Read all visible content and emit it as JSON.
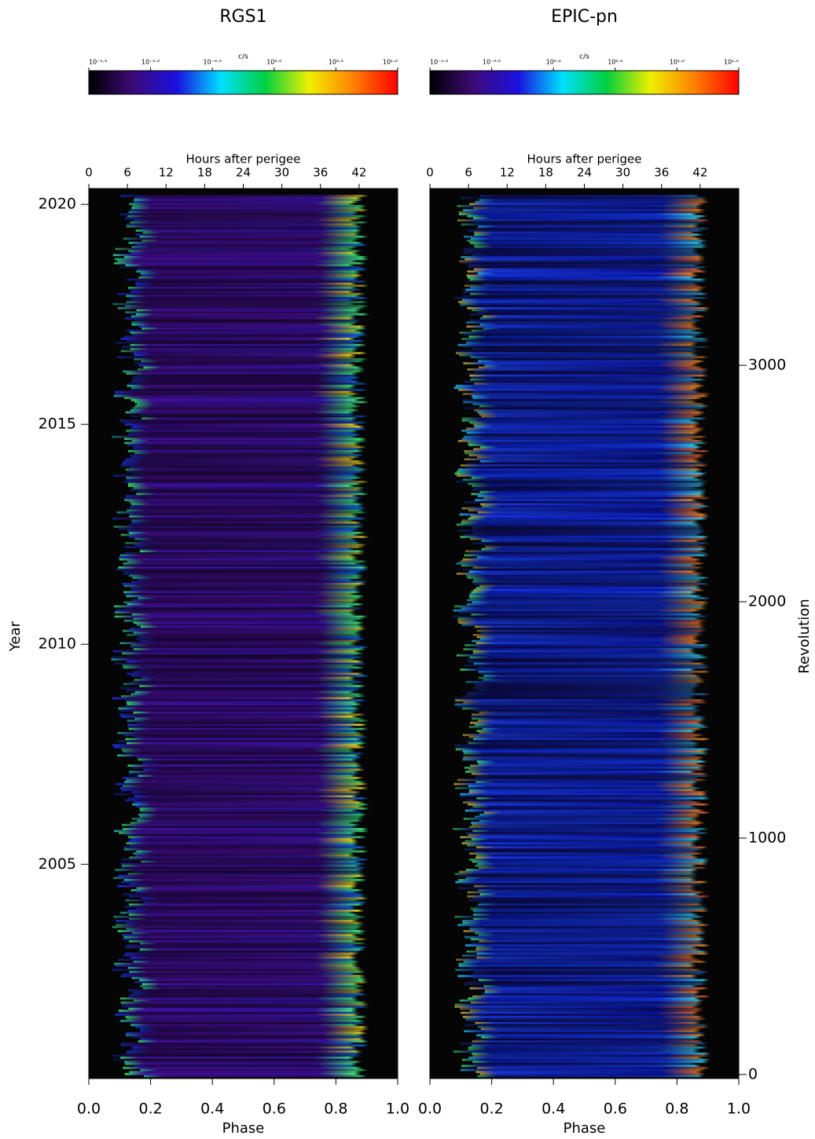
{
  "chart_data": [
    {
      "type": "heatmap",
      "title": "RGS1",
      "colorbar": {
        "label": "c/s",
        "lim": [
          -1.5,
          1.0
        ],
        "ticks": [
          {
            "value": -1.5,
            "label": "10⁻¹·⁵"
          },
          {
            "value": -1.0,
            "label": "10⁻¹·⁰"
          },
          {
            "value": -0.5,
            "label": "10⁻⁰·⁵"
          },
          {
            "value": 0.0,
            "label": "10⁰·⁰"
          },
          {
            "value": 0.5,
            "label": "10⁰·⁵"
          },
          {
            "value": 1.0,
            "label": "10¹·⁰"
          }
        ],
        "colormap": [
          "#000000",
          "#3c0a78",
          "#1a10e0",
          "#00e0ff",
          "#00d040",
          "#f0f000",
          "#ff8000",
          "#ff0000"
        ]
      },
      "x_top": {
        "label": "Hours after perigee",
        "lim": [
          0,
          48
        ],
        "ticks": [
          0,
          6,
          12,
          18,
          24,
          30,
          36,
          42
        ]
      },
      "x_label": "Phase",
      "xlim": [
        0,
        1
      ],
      "xticks": [
        {
          "value": 0,
          "label": "0.0"
        },
        {
          "value": 0.2,
          "label": "0.2"
        },
        {
          "value": 0.4,
          "label": "0.4"
        },
        {
          "value": 0.6,
          "label": "0.6"
        },
        {
          "value": 0.8,
          "label": "0.8"
        },
        {
          "value": 1,
          "label": "1.0"
        }
      ],
      "y_label": "Year",
      "ylim": [
        2000.13,
        2020.36
      ],
      "yticks": [
        2005,
        2010,
        2015,
        2020
      ]
    },
    {
      "type": "heatmap",
      "title": "EPIC-pn",
      "colorbar": {
        "label": "c/s",
        "lim": [
          -1.0,
          1.5
        ],
        "ticks": [
          {
            "value": -1.0,
            "label": "10⁻¹·⁰"
          },
          {
            "value": -0.5,
            "label": "10⁻⁰·⁵"
          },
          {
            "value": 0.0,
            "label": "10⁰·⁰"
          },
          {
            "value": 0.5,
            "label": "10⁰·⁵"
          },
          {
            "value": 1.0,
            "label": "10¹·⁰"
          },
          {
            "value": 1.5,
            "label": "10¹·⁵"
          }
        ],
        "colormap": [
          "#000000",
          "#3c0a78",
          "#1a10e0",
          "#00e0ff",
          "#00d040",
          "#f0f000",
          "#ff8000",
          "#ff0000"
        ]
      },
      "x_top": {
        "label": "Hours after perigee",
        "lim": [
          0,
          48
        ],
        "ticks": [
          0,
          6,
          12,
          18,
          24,
          30,
          36,
          42
        ]
      },
      "x_label": "Phase",
      "xlim": [
        0,
        1
      ],
      "xticks": [
        {
          "value": 0,
          "label": "0.0"
        },
        {
          "value": 0.2,
          "label": "0.2"
        },
        {
          "value": 0.4,
          "label": "0.4"
        },
        {
          "value": 0.6,
          "label": "0.6"
        },
        {
          "value": 0.8,
          "label": "0.8"
        },
        {
          "value": 1,
          "label": "1.0"
        }
      ],
      "y2_label": "Revolution",
      "y2lim": [
        -17,
        3748
      ],
      "y2ticks": [
        0,
        1000,
        2000,
        3000
      ]
    }
  ]
}
